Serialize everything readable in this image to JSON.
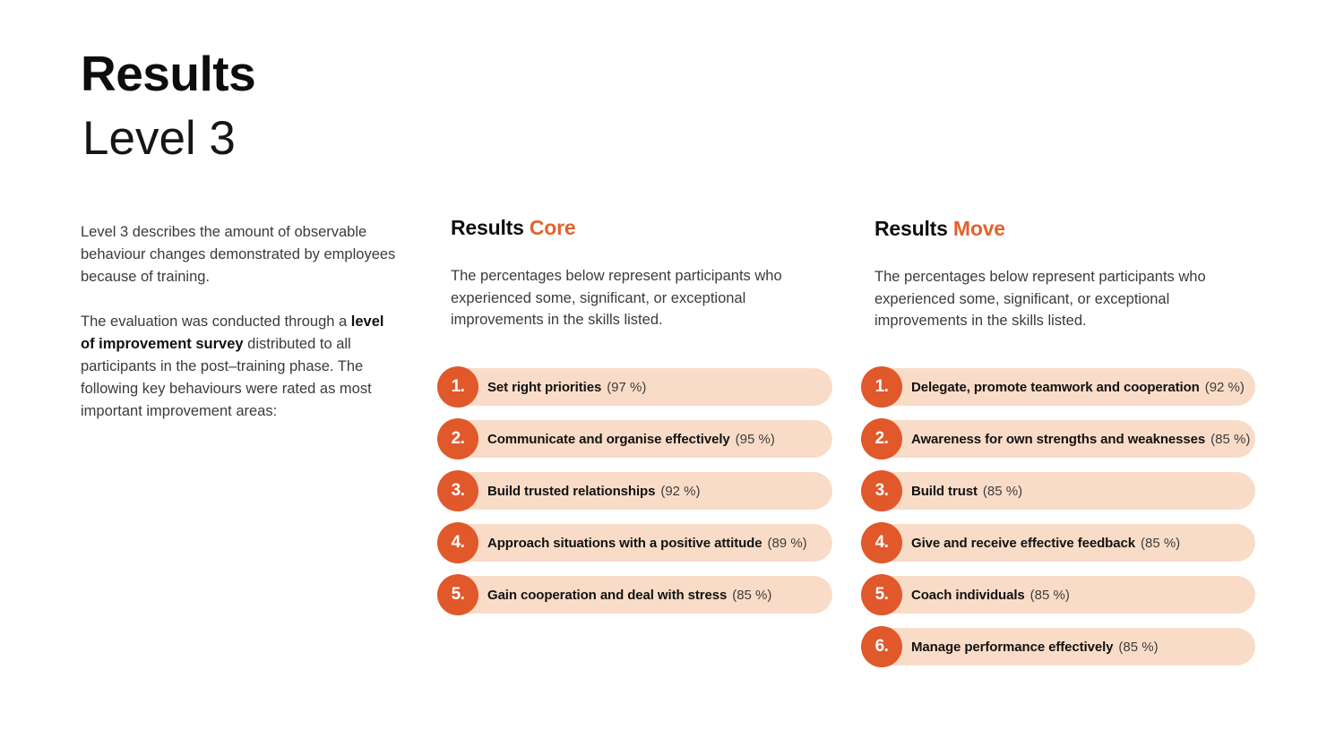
{
  "slide": {
    "title": "Results",
    "subtitle": "Level 3"
  },
  "intro": {
    "paragraph1": "Level 3 describes the amount of observable behaviour changes demonstrated by employees because of training.",
    "paragraph2_prefix": "The evaluation was conducted through a ",
    "paragraph2_bold": "level of improvement survey",
    "paragraph2_suffix": " distributed to all participants in the post–training phase. The following key behaviours were rated as most important improvement areas:"
  },
  "colors": {
    "accent_orange": "#E1582A",
    "heading_orange": "#E2632E",
    "pill_background": "#F9DCC7"
  },
  "sections": [
    {
      "heading_main": "Results",
      "heading_accent": "Core",
      "description": "The percentages below represent participants who experienced some, significant, or exceptional improvements in the skills listed.",
      "items": [
        {
          "number": "1.",
          "label": "Set right priorities",
          "value": "(97 %)"
        },
        {
          "number": "2.",
          "label": "Communicate and organise effectively",
          "value": "(95 %)"
        },
        {
          "number": "3.",
          "label": "Build trusted relationships",
          "value": "(92 %)"
        },
        {
          "number": "4.",
          "label": "Approach situations with a positive attitude",
          "value": "(89 %)"
        },
        {
          "number": "5.",
          "label": "Gain cooperation and deal with stress",
          "value": "(85 %)"
        }
      ]
    },
    {
      "heading_main": "Results",
      "heading_accent": "Move",
      "description": "The percentages below represent participants who experienced some, significant, or exceptional improvements in the skills listed.",
      "items": [
        {
          "number": "1.",
          "label": "Delegate, promote teamwork and cooperation",
          "value": "(92 %)"
        },
        {
          "number": "2.",
          "label": "Awareness for own strengths and weaknesses",
          "value": "(85 %)"
        },
        {
          "number": "3.",
          "label": "Build trust",
          "value": "(85 %)"
        },
        {
          "number": "4.",
          "label": "Give and receive effective feedback",
          "value": "(85 %)"
        },
        {
          "number": "5.",
          "label": "Coach individuals",
          "value": "(85 %)"
        },
        {
          "number": "6.",
          "label": "Manage performance effectively",
          "value": "(85 %)"
        }
      ]
    }
  ]
}
